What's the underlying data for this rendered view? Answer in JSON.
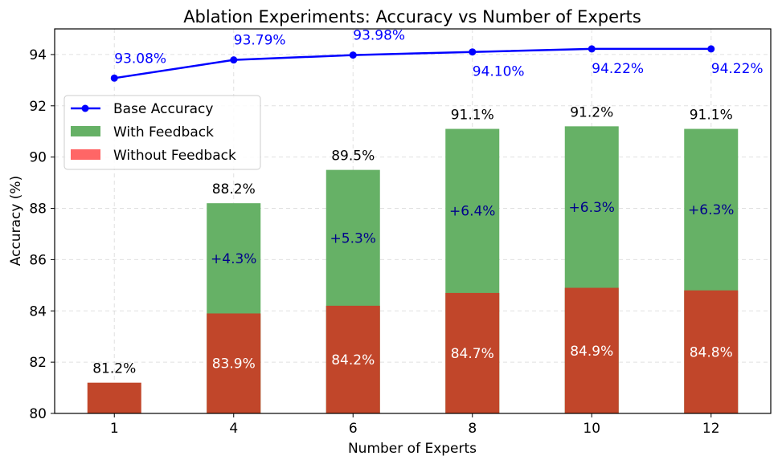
{
  "chart_data": {
    "type": "bar",
    "title": "Ablation Experiments: Accuracy vs Number of Experts",
    "xlabel": "Number of Experts",
    "ylabel": "Accuracy (%)",
    "ylim": [
      80,
      95
    ],
    "yticks": [
      80,
      82,
      84,
      86,
      88,
      90,
      92,
      94
    ],
    "grid": true,
    "legend_position": "upper-left",
    "categories": [
      "1",
      "4",
      "6",
      "8",
      "10",
      "12"
    ],
    "series": [
      {
        "name": "Without Feedback",
        "kind": "bar",
        "color": "#ff0000",
        "values": [
          81.2,
          83.9,
          84.2,
          84.7,
          84.9,
          84.8
        ],
        "labels": [
          "81.2%",
          "83.9%",
          "84.2%",
          "84.7%",
          "84.9%",
          "84.8%"
        ]
      },
      {
        "name": "With Feedback",
        "kind": "bar",
        "color": "#2ca02c",
        "values": [
          null,
          88.2,
          89.5,
          91.1,
          91.2,
          91.1
        ],
        "labels": [
          null,
          "88.2%",
          "89.5%",
          "91.1%",
          "91.2%",
          "91.1%"
        ],
        "gain_labels": [
          null,
          "+4.3%",
          "+5.3%",
          "+6.4%",
          "+6.3%",
          "+6.3%"
        ]
      },
      {
        "name": "Base Accuracy",
        "kind": "line",
        "color": "#0000ff",
        "values": [
          93.08,
          93.79,
          93.98,
          94.1,
          94.22,
          94.22
        ],
        "labels": [
          "93.08%",
          "93.79%",
          "93.98%",
          "94.10%",
          "94.22%",
          "94.22%"
        ]
      }
    ],
    "bar_colors": {
      "without_overlap": "#c1462a",
      "with_feedback": "#66b166",
      "without_legend": "#ff6666"
    }
  }
}
